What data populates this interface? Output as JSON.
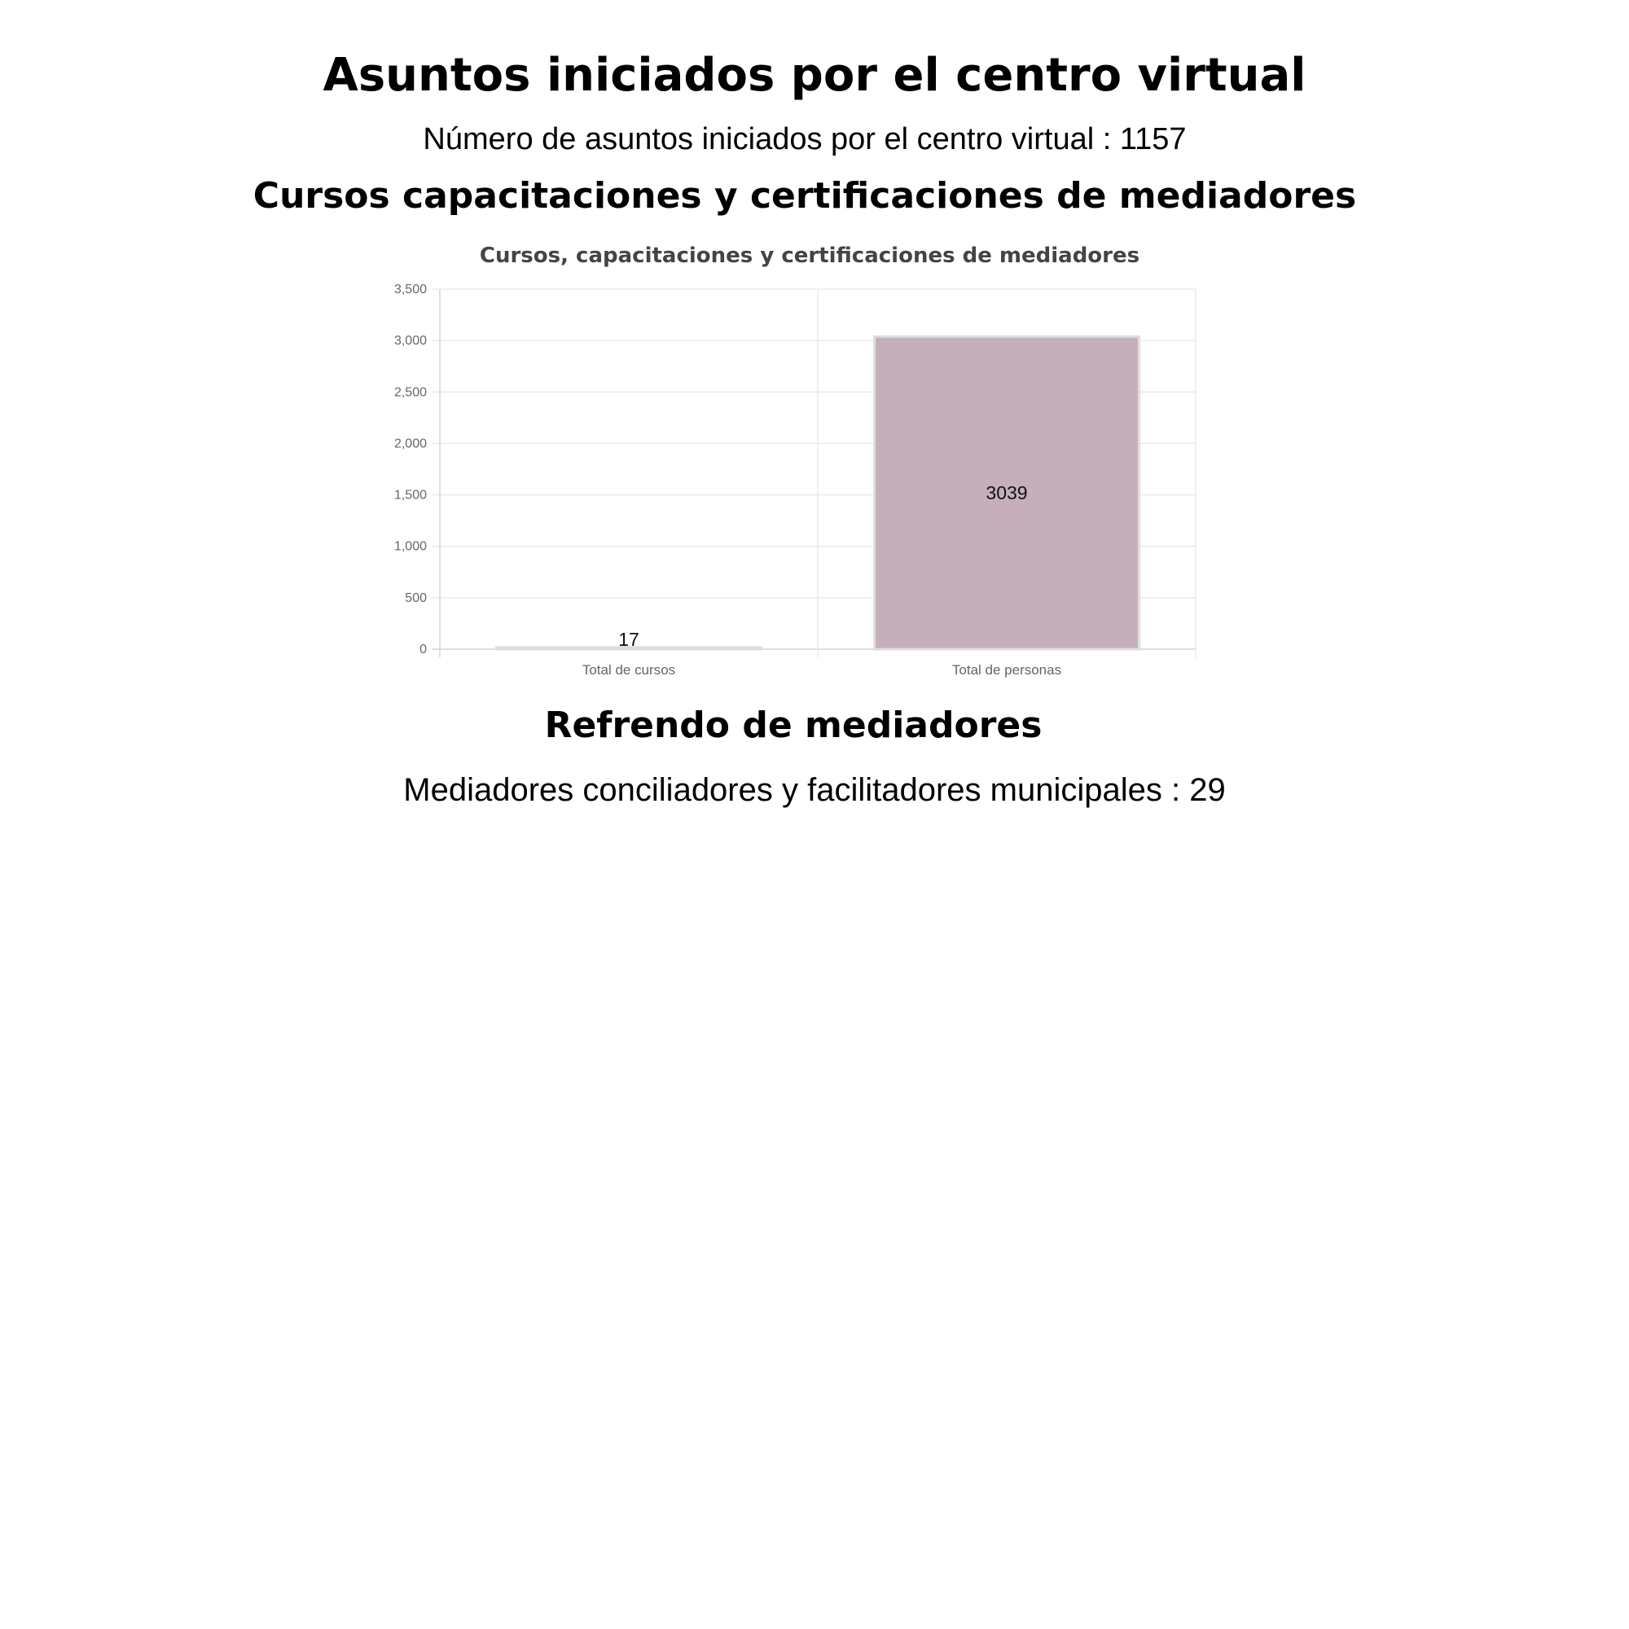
{
  "sections": {
    "virtual_center": {
      "heading": "Asuntos iniciados por el centro virtual",
      "stat_label": "Número de asuntos iniciados por el centro virtual : 1157"
    },
    "courses": {
      "heading": "Cursos capacitaciones y certificaciones de mediadores"
    },
    "endorsement": {
      "heading": "Refrendo de mediadores",
      "stat_label": "Mediadores conciliadores y facilitadores municipales : 29"
    }
  },
  "chart_data": {
    "type": "bar",
    "title": "Cursos, capacitaciones y certificaciones de mediadores",
    "categories": [
      "Total de cursos",
      "Total de personas"
    ],
    "values": [
      17,
      3039
    ],
    "data_labels": [
      "17",
      "3039"
    ],
    "ylim": [
      0,
      3500
    ],
    "yticks": [
      0,
      500,
      1000,
      1500,
      2000,
      2500,
      3000,
      3500
    ],
    "ytick_labels": [
      "0",
      "500",
      "1,000",
      "1,500",
      "2,000",
      "2,500",
      "3,000",
      "3,500"
    ],
    "xlabel": "",
    "ylabel": "",
    "grid": true,
    "legend": "none",
    "colors": {
      "bar_fill": "#c5afba",
      "bar_border": "#dddddd",
      "grid": "#e5e5e5",
      "axis": "#cccccc"
    }
  }
}
